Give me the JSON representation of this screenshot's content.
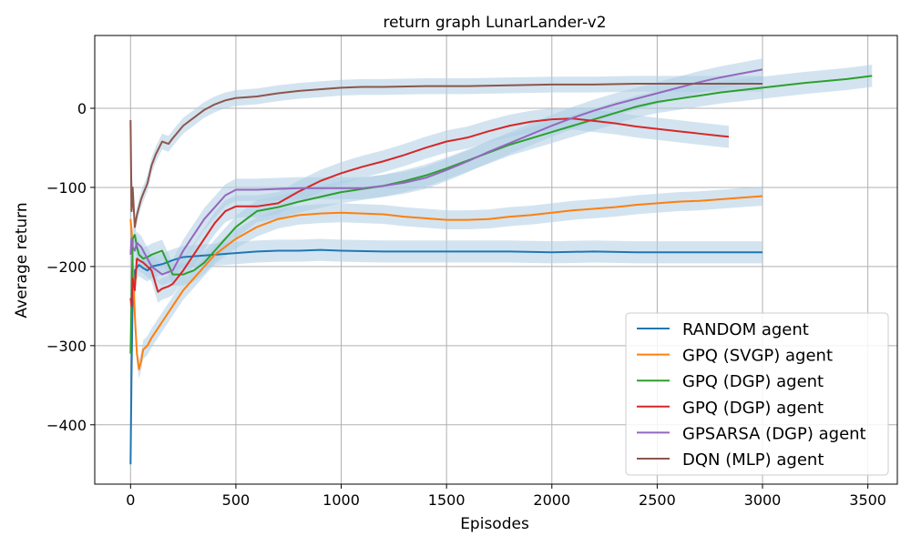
{
  "chart_data": {
    "type": "line",
    "title": "return graph LunarLander-v2",
    "xlabel": "Episodes",
    "ylabel": "Average return",
    "xlim": [
      -170,
      3640
    ],
    "ylim": [
      -475,
      92
    ],
    "xticks": [
      0,
      500,
      1000,
      1500,
      2000,
      2500,
      3000,
      3500
    ],
    "yticks": [
      -400,
      -300,
      -200,
      -100,
      0
    ],
    "ytick_labels": [
      "−400",
      "−300",
      "−200",
      "−100",
      "0"
    ],
    "grid": true,
    "legend_position": "bottom-right",
    "band_color": "#aecde4",
    "series": [
      {
        "name": "RANDOM agent",
        "color": "#1f77b4",
        "band": 14,
        "x": [
          0,
          5,
          10,
          20,
          40,
          60,
          80,
          100,
          150,
          200,
          250,
          300,
          400,
          500,
          600,
          700,
          800,
          900,
          1000,
          1200,
          1400,
          1600,
          1800,
          2000,
          2200,
          2400,
          2600,
          2800,
          3000
        ],
        "y": [
          -450,
          -330,
          -240,
          -205,
          -198,
          -202,
          -205,
          -200,
          -197,
          -192,
          -188,
          -187,
          -185,
          -183,
          -181,
          -180,
          -180,
          -179,
          -180,
          -181,
          -181,
          -181,
          -181,
          -182,
          -181,
          -182,
          -182,
          -182,
          -182
        ]
      },
      {
        "name": "GPQ (SVGP) agent",
        "color": "#ff7f0e",
        "band": 12,
        "x": [
          0,
          5,
          10,
          20,
          30,
          40,
          50,
          60,
          80,
          100,
          150,
          200,
          250,
          300,
          350,
          400,
          500,
          600,
          700,
          800,
          900,
          1000,
          1100,
          1200,
          1300,
          1400,
          1500,
          1600,
          1700,
          1800,
          1900,
          2000,
          2100,
          2200,
          2300,
          2400,
          2500,
          2600,
          2700,
          2800,
          2900,
          3000
        ],
        "y": [
          -140,
          -155,
          -190,
          -260,
          -310,
          -330,
          -320,
          -305,
          -300,
          -290,
          -270,
          -250,
          -230,
          -215,
          -200,
          -185,
          -165,
          -150,
          -140,
          -135,
          -133,
          -132,
          -133,
          -134,
          -137,
          -139,
          -141,
          -141,
          -140,
          -137,
          -135,
          -132,
          -129,
          -127,
          -125,
          -122,
          -120,
          -118,
          -117,
          -115,
          -113,
          -111
        ]
      },
      {
        "name": "GPQ (DGP) agent",
        "color": "#2ca02c",
        "band": 14,
        "x": [
          0,
          5,
          10,
          20,
          30,
          40,
          60,
          80,
          100,
          150,
          200,
          250,
          300,
          350,
          400,
          450,
          500,
          550,
          600,
          700,
          800,
          900,
          1000,
          1100,
          1200,
          1300,
          1400,
          1500,
          1600,
          1700,
          1800,
          1900,
          2000,
          2100,
          2200,
          2300,
          2400,
          2500,
          2600,
          2700,
          2800,
          2900,
          3000,
          3200,
          3400,
          3520
        ],
        "y": [
          -310,
          -240,
          -165,
          -160,
          -175,
          -185,
          -190,
          -188,
          -185,
          -180,
          -210,
          -210,
          -205,
          -195,
          -180,
          -165,
          -150,
          -140,
          -130,
          -125,
          -118,
          -112,
          -106,
          -102,
          -98,
          -92,
          -85,
          -76,
          -66,
          -56,
          -46,
          -38,
          -30,
          -22,
          -14,
          -6,
          2,
          8,
          12,
          16,
          20,
          23,
          26,
          32,
          37,
          41
        ]
      },
      {
        "name": "GPQ (DGP) agent",
        "color": "#d62728",
        "band": 14,
        "x": [
          0,
          5,
          10,
          20,
          30,
          40,
          60,
          80,
          100,
          130,
          150,
          180,
          200,
          250,
          300,
          350,
          400,
          450,
          500,
          550,
          600,
          700,
          800,
          900,
          1000,
          1100,
          1200,
          1300,
          1400,
          1500,
          1600,
          1700,
          1800,
          1900,
          2000,
          2100,
          2200,
          2300,
          2400,
          2500,
          2600,
          2700,
          2800,
          2840
        ],
        "y": [
          -240,
          -250,
          -215,
          -230,
          -190,
          -192,
          -195,
          -200,
          -205,
          -232,
          -228,
          -225,
          -222,
          -205,
          -185,
          -165,
          -145,
          -130,
          -124,
          -124,
          -124,
          -120,
          -105,
          -92,
          -82,
          -74,
          -67,
          -59,
          -50,
          -42,
          -37,
          -29,
          -22,
          -17,
          -14,
          -13,
          -16,
          -19,
          -23,
          -26,
          -29,
          -32,
          -35,
          -36
        ]
      },
      {
        "name": "GPSARSA (DGP) agent",
        "color": "#9467bd",
        "band": 14,
        "x": [
          0,
          5,
          10,
          20,
          30,
          50,
          80,
          100,
          150,
          200,
          250,
          300,
          350,
          400,
          450,
          500,
          600,
          700,
          800,
          900,
          1000,
          1100,
          1200,
          1300,
          1400,
          1500,
          1600,
          1700,
          1800,
          1900,
          2000,
          2100,
          2200,
          2300,
          2400,
          2500,
          2600,
          2700,
          2800,
          2900,
          3000
        ],
        "y": [
          -185,
          -165,
          -175,
          -180,
          -170,
          -175,
          -190,
          -200,
          -210,
          -205,
          -180,
          -160,
          -140,
          -125,
          -110,
          -103,
          -103,
          -102,
          -101,
          -101,
          -101,
          -101,
          -98,
          -94,
          -88,
          -78,
          -67,
          -55,
          -44,
          -33,
          -22,
          -12,
          -3,
          5,
          12,
          19,
          26,
          33,
          39,
          44,
          49
        ]
      },
      {
        "name": "DQN (MLP) agent",
        "color": "#8c564b",
        "band": 10,
        "x": [
          0,
          5,
          10,
          20,
          30,
          40,
          50,
          60,
          80,
          100,
          120,
          150,
          180,
          200,
          250,
          300,
          350,
          400,
          450,
          500,
          550,
          600,
          700,
          800,
          900,
          1000,
          1100,
          1200,
          1400,
          1600,
          1800,
          2000,
          2200,
          2400,
          2600,
          2800,
          3000
        ],
        "y": [
          -15,
          -130,
          -100,
          -150,
          -135,
          -125,
          -115,
          -108,
          -95,
          -72,
          -58,
          -42,
          -45,
          -38,
          -22,
          -12,
          -2,
          5,
          10,
          13,
          14,
          15,
          19,
          22,
          24,
          26,
          27,
          27,
          28,
          28,
          29,
          30,
          30,
          31,
          31,
          31,
          31
        ]
      }
    ]
  }
}
